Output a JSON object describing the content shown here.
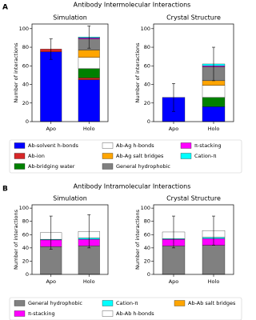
{
  "panels": [
    {
      "label": "A",
      "title": "Antibody Intermolecular Interactions"
    },
    {
      "label": "B",
      "title": "Antibody Intramolecular Interactions"
    }
  ],
  "chart_data": [
    {
      "type": "bar",
      "stacked": true,
      "title": "Simulation",
      "ylabel": "Number of interactions",
      "categories": [
        "Apo",
        "Holo"
      ],
      "ylim": [
        0,
        105
      ],
      "yticks": [
        0,
        20,
        40,
        60,
        80,
        100
      ],
      "series": [
        {
          "name": "Ab-solvent h-bonds",
          "color": "#0000ff",
          "values": [
            75,
            45
          ]
        },
        {
          "name": "Ab-ion",
          "color": "#d62728",
          "values": [
            3,
            2
          ]
        },
        {
          "name": "Ab-bridging water",
          "color": "#008000",
          "values": [
            0,
            10
          ]
        },
        {
          "name": "Ab-Ag h-bonds",
          "color": "#ffffff",
          "values": [
            0,
            12
          ]
        },
        {
          "name": "Ab-Ag salt bridges",
          "color": "#ffa500",
          "values": [
            0,
            8
          ]
        },
        {
          "name": "General hydrophobic",
          "color": "#808080",
          "values": [
            0,
            12
          ]
        },
        {
          "name": "π-stacking",
          "color": "#ff00ff",
          "values": [
            0,
            1
          ]
        },
        {
          "name": "Cation-π",
          "color": "#00ffff",
          "values": [
            0,
            1
          ]
        }
      ],
      "errors": [
        11,
        12
      ]
    },
    {
      "type": "bar",
      "stacked": true,
      "title": "Crystal Structure",
      "ylabel": "Number of interactions",
      "categories": [
        "Apo",
        "Holo"
      ],
      "ylim": [
        0,
        105
      ],
      "yticks": [
        0,
        20,
        40,
        60,
        80,
        100
      ],
      "series": [
        {
          "name": "Ab-solvent h-bonds",
          "color": "#0000ff",
          "values": [
            26,
            16
          ]
        },
        {
          "name": "Ab-ion",
          "color": "#d62728",
          "values": [
            0,
            0
          ]
        },
        {
          "name": "Ab-bridging water",
          "color": "#008000",
          "values": [
            0,
            10
          ]
        },
        {
          "name": "Ab-Ag h-bonds",
          "color": "#ffffff",
          "values": [
            0,
            13
          ]
        },
        {
          "name": "Ab-Ag salt bridges",
          "color": "#ffa500",
          "values": [
            0,
            5
          ]
        },
        {
          "name": "General hydrophobic",
          "color": "#808080",
          "values": [
            0,
            15
          ]
        },
        {
          "name": "π-stacking",
          "color": "#ff00ff",
          "values": [
            0,
            1
          ]
        },
        {
          "name": "Cation-π",
          "color": "#00ffff",
          "values": [
            0,
            2
          ]
        }
      ],
      "errors": [
        15,
        18
      ]
    },
    {
      "type": "bar",
      "stacked": true,
      "title": "Simulation",
      "ylabel": "Number of interactions",
      "categories": [
        "Apo",
        "Holo"
      ],
      "ylim": [
        0,
        105
      ],
      "yticks": [
        0,
        20,
        40,
        60,
        80,
        100
      ],
      "series": [
        {
          "name": "General hydrophobic",
          "color": "#808080",
          "values": [
            42,
            43
          ]
        },
        {
          "name": "π-stacking",
          "color": "#ff00ff",
          "values": [
            10,
            10
          ]
        },
        {
          "name": "Cation-π",
          "color": "#00ffff",
          "values": [
            1,
            2
          ]
        },
        {
          "name": "Ab-Ab h-bonds",
          "color": "#ffffff",
          "values": [
            10,
            10
          ]
        },
        {
          "name": "Ab-Ab salt bridges",
          "color": "#ffa500",
          "values": [
            0,
            0
          ]
        }
      ],
      "errors": [
        25,
        25
      ]
    },
    {
      "type": "bar",
      "stacked": true,
      "title": "Crystal Structure",
      "ylabel": "Number of interactions",
      "categories": [
        "Apo",
        "Holo"
      ],
      "ylim": [
        0,
        105
      ],
      "yticks": [
        0,
        20,
        40,
        60,
        80,
        100
      ],
      "series": [
        {
          "name": "General hydrophobic",
          "color": "#808080",
          "values": [
            43,
            44
          ]
        },
        {
          "name": "π-stacking",
          "color": "#ff00ff",
          "values": [
            10,
            10
          ]
        },
        {
          "name": "Cation-π",
          "color": "#00ffff",
          "values": [
            1,
            2
          ]
        },
        {
          "name": "Ab-Ab h-bonds",
          "color": "#ffffff",
          "values": [
            10,
            10
          ]
        },
        {
          "name": "Ab-Ab salt bridges",
          "color": "#ffa500",
          "values": [
            0,
            0
          ]
        }
      ],
      "errors": [
        24,
        22
      ]
    }
  ]
}
